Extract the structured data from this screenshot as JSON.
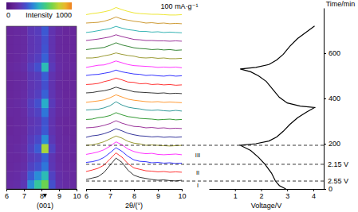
{
  "chart_data": [
    {
      "type": "heatmap",
      "x_edges": [
        6,
        6.4,
        6.8,
        7.2,
        7.6,
        8,
        8.4,
        8.8,
        9.2,
        9.6,
        10
      ],
      "y_edges": [
        0,
        40,
        80,
        120,
        160,
        200,
        240,
        280,
        320,
        360,
        400,
        440,
        480,
        520,
        560,
        600,
        640,
        680,
        720
      ],
      "cells": [
        [
          170,
          180,
          220,
          420,
          560,
          680,
          300,
          190,
          170,
          160
        ],
        [
          160,
          170,
          200,
          330,
          420,
          520,
          260,
          180,
          160,
          150
        ],
        [
          150,
          160,
          180,
          260,
          300,
          380,
          220,
          170,
          150,
          150
        ],
        [
          150,
          150,
          170,
          230,
          260,
          340,
          210,
          160,
          150,
          140
        ],
        [
          150,
          160,
          180,
          260,
          330,
          760,
          260,
          170,
          150,
          150
        ],
        [
          150,
          150,
          170,
          240,
          280,
          420,
          220,
          160,
          150,
          140
        ],
        [
          140,
          150,
          160,
          220,
          240,
          320,
          200,
          160,
          140,
          140
        ],
        [
          140,
          150,
          160,
          210,
          230,
          310,
          200,
          150,
          140,
          140
        ],
        [
          150,
          150,
          170,
          230,
          260,
          380,
          210,
          160,
          150,
          140
        ],
        [
          150,
          160,
          180,
          250,
          300,
          480,
          230,
          170,
          150,
          150
        ],
        [
          140,
          150,
          170,
          220,
          250,
          340,
          210,
          160,
          140,
          140
        ],
        [
          140,
          150,
          160,
          210,
          230,
          300,
          200,
          150,
          140,
          140
        ],
        [
          140,
          150,
          160,
          220,
          240,
          330,
          200,
          160,
          140,
          140
        ],
        [
          150,
          160,
          180,
          250,
          300,
          520,
          230,
          170,
          150,
          150
        ],
        [
          140,
          150,
          170,
          220,
          250,
          340,
          210,
          160,
          150,
          140
        ],
        [
          140,
          150,
          160,
          210,
          230,
          310,
          200,
          150,
          140,
          140
        ],
        [
          140,
          150,
          160,
          210,
          230,
          300,
          200,
          150,
          140,
          140
        ],
        [
          140,
          150,
          160,
          220,
          240,
          320,
          200,
          160,
          140,
          140
        ]
      ],
      "xlim": [
        6,
        10
      ],
      "ylim": [
        0,
        720
      ],
      "xticks": [
        6,
        7,
        8,
        9,
        10
      ],
      "tick_labels": "x",
      "colorbar": {
        "label": "Intensity",
        "range": [
          0,
          1000
        ],
        "ticks": [
          0,
          1000
        ]
      },
      "annotation": {
        "x": 8.2,
        "text": "(001)"
      }
    },
    {
      "type": "line",
      "x": [
        6,
        6.25,
        6.5,
        6.75,
        7,
        7.25,
        7.5,
        7.75,
        8,
        8.25,
        8.5,
        8.75,
        9,
        9.25,
        9.5,
        9.75,
        10
      ],
      "series": [
        {
          "color": "#000000",
          "values": [
            22,
            26,
            30,
            42,
            62,
            82,
            70,
            48,
            34,
            28,
            25,
            22,
            20,
            21,
            19,
            18,
            20
          ]
        },
        {
          "color": "#ff0000",
          "values": [
            20,
            24,
            29,
            38,
            55,
            72,
            60,
            42,
            30,
            26,
            22,
            21,
            19,
            20,
            18,
            19,
            18
          ]
        },
        {
          "color": "#0000ff",
          "values": [
            21,
            23,
            27,
            35,
            48,
            62,
            52,
            38,
            28,
            24,
            23,
            20,
            21,
            19,
            20,
            18,
            19
          ]
        },
        {
          "color": "#ff00ff",
          "values": [
            19,
            22,
            26,
            32,
            42,
            54,
            46,
            34,
            27,
            23,
            21,
            22,
            19,
            18,
            19,
            20,
            18
          ]
        },
        {
          "color": "#808000",
          "values": [
            20,
            21,
            25,
            30,
            38,
            46,
            40,
            31,
            26,
            24,
            20,
            21,
            20,
            19,
            18,
            19,
            20
          ]
        },
        {
          "color": "#000080",
          "values": [
            18,
            22,
            24,
            28,
            34,
            42,
            36,
            29,
            25,
            22,
            21,
            19,
            20,
            18,
            19,
            18,
            19
          ]
        },
        {
          "color": "#800080",
          "values": [
            20,
            21,
            23,
            27,
            32,
            40,
            33,
            28,
            24,
            23,
            20,
            21,
            19,
            20,
            18,
            19,
            18
          ]
        },
        {
          "color": "#008000",
          "values": [
            19,
            20,
            24,
            26,
            30,
            38,
            32,
            27,
            25,
            22,
            21,
            20,
            18,
            19,
            20,
            18,
            19
          ]
        },
        {
          "color": "#008080",
          "values": [
            21,
            22,
            23,
            27,
            33,
            44,
            35,
            29,
            26,
            24,
            21,
            20,
            21,
            19,
            18,
            20,
            18
          ]
        },
        {
          "color": "#ff8000",
          "values": [
            18,
            20,
            22,
            25,
            31,
            39,
            33,
            27,
            24,
            22,
            20,
            19,
            20,
            18,
            19,
            18,
            17
          ]
        },
        {
          "color": "#000000",
          "values": [
            20,
            21,
            24,
            26,
            30,
            36,
            31,
            28,
            23,
            22,
            21,
            20,
            19,
            20,
            18,
            19,
            18
          ]
        },
        {
          "color": "#ff0000",
          "values": [
            19,
            20,
            22,
            27,
            31,
            37,
            32,
            26,
            25,
            21,
            22,
            19,
            20,
            18,
            19,
            17,
            18
          ]
        },
        {
          "color": "#0000ff",
          "values": [
            20,
            22,
            23,
            26,
            29,
            35,
            30,
            27,
            24,
            23,
            20,
            21,
            19,
            18,
            20,
            18,
            19
          ]
        },
        {
          "color": "#ff00ff",
          "values": [
            18,
            21,
            24,
            25,
            30,
            36,
            31,
            26,
            23,
            22,
            21,
            20,
            18,
            19,
            18,
            19,
            17
          ]
        },
        {
          "color": "#808000",
          "values": [
            20,
            20,
            22,
            26,
            29,
            34,
            30,
            27,
            25,
            21,
            20,
            21,
            19,
            20,
            18,
            18,
            19
          ]
        },
        {
          "color": "#006400",
          "values": [
            19,
            21,
            23,
            25,
            31,
            38,
            32,
            28,
            24,
            22,
            21,
            19,
            20,
            18,
            19,
            17,
            18
          ]
        },
        {
          "color": "#800080",
          "values": [
            20,
            22,
            24,
            27,
            30,
            36,
            31,
            27,
            23,
            22,
            20,
            20,
            19,
            19,
            18,
            19,
            18
          ]
        },
        {
          "color": "#00a0a0",
          "values": [
            18,
            20,
            23,
            26,
            29,
            35,
            30,
            26,
            24,
            21,
            21,
            19,
            20,
            18,
            19,
            18,
            17
          ]
        },
        {
          "color": "#c08000",
          "values": [
            20,
            21,
            22,
            25,
            30,
            37,
            31,
            28,
            25,
            23,
            20,
            21,
            19,
            20,
            18,
            19,
            18
          ]
        },
        {
          "color": "#e8e000",
          "values": [
            19,
            22,
            24,
            27,
            31,
            39,
            33,
            28,
            24,
            22,
            21,
            20,
            20,
            19,
            18,
            18,
            19
          ]
        }
      ],
      "xlim": [
        6,
        10
      ],
      "ylim": [
        0,
        100
      ],
      "xticks": [
        6,
        7,
        8,
        9,
        10
      ],
      "tick_labels": "x",
      "x_label": "2θ/(°)",
      "annotation": "100 mA·g⁻¹"
    },
    {
      "type": "line",
      "x": [
        2.95,
        2.7,
        2.55,
        2.4,
        2.15,
        1.9,
        1.6,
        1.2,
        1.8,
        2.3,
        2.6,
        2.85,
        3.1,
        3.4,
        3.75,
        4.05,
        3.5,
        3.0,
        2.7,
        2.45,
        2.2,
        1.9,
        1.6,
        1.2,
        1.8,
        2.3,
        2.6,
        2.85,
        3.1,
        3.4,
        3.75,
        4.05
      ],
      "values": [
        0,
        15,
        35,
        70,
        109,
        140,
        170,
        193,
        200,
        212,
        230,
        255,
        285,
        315,
        340,
        360,
        366,
        380,
        405,
        440,
        475,
        500,
        518,
        530,
        537,
        550,
        570,
        595,
        630,
        665,
        695,
        720
      ],
      "color": "#000000",
      "xlim": [
        0,
        4.4
      ],
      "ylim": [
        0,
        800
      ],
      "xticks": [
        1,
        2,
        3,
        4
      ],
      "yticks": [
        0,
        200,
        400,
        600
      ],
      "x_label": "Voltage/V",
      "y_label": "Time/min",
      "lines": [
        {
          "value": 35,
          "label": "2.55 V"
        },
        {
          "value": 109,
          "label": "2.15 V"
        },
        {
          "value": 193
        }
      ],
      "regions": [
        "I",
        "II",
        "III"
      ]
    }
  ]
}
